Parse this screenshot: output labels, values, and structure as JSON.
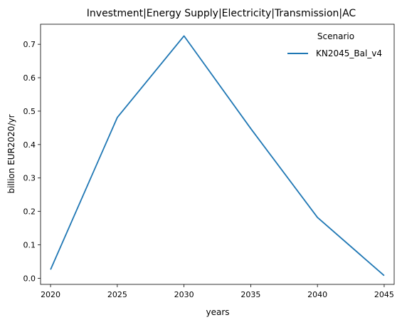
{
  "chart_data": {
    "type": "line",
    "title": "Investment|Energy Supply|Electricity|Transmission|AC",
    "xlabel": "years",
    "ylabel": "billion EUR2020/yr",
    "x": [
      2020,
      2025,
      2030,
      2035,
      2040,
      2045
    ],
    "xticks": [
      "2020",
      "2025",
      "2030",
      "2035",
      "2040",
      "2045"
    ],
    "yticks": [
      "0.0",
      "0.1",
      "0.2",
      "0.3",
      "0.4",
      "0.5",
      "0.6",
      "0.7"
    ],
    "xlim": [
      2019.25,
      2045.75
    ],
    "ylim": [
      -0.0183,
      0.76
    ],
    "grid": false,
    "legend": {
      "title": "Scenario",
      "placement": "top-right"
    },
    "series": [
      {
        "name": "KN2045_Bal_v4",
        "color": "#1f77b4",
        "values": [
          0.026,
          0.481,
          0.725,
          0.448,
          0.182,
          0.008
        ]
      }
    ]
  }
}
